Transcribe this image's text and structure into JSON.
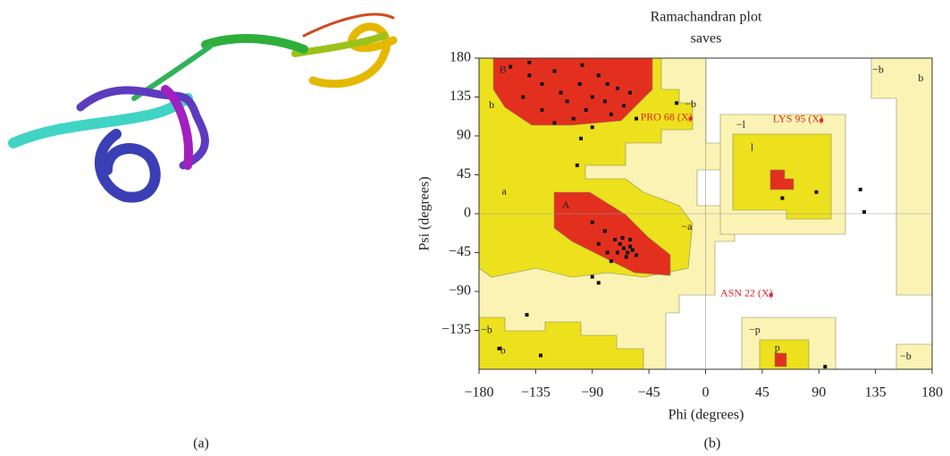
{
  "panel_labels": [
    "(a)",
    "(b)"
  ],
  "chart_data": {
    "type": "scatter",
    "title": "Ramachandran plot",
    "subtitle": "saves",
    "x_label": "Phi (degrees)",
    "y_label": "Psi (degrees)",
    "xlim": [
      -180,
      180
    ],
    "ylim": [
      -180,
      180
    ],
    "xticks": [
      {
        "value": -180,
        "label": "−180"
      },
      {
        "value": -135,
        "label": "−135"
      },
      {
        "value": -90,
        "label": "−90"
      },
      {
        "value": -45,
        "label": "−45"
      },
      0,
      45,
      90,
      135,
      180
    ],
    "yticks": [
      {
        "value": -135,
        "label": "−135"
      },
      {
        "value": -90,
        "label": "−90"
      },
      {
        "value": -45,
        "label": "−45"
      },
      0,
      45,
      90,
      135,
      180
    ],
    "points": {
      "color": "#111111",
      "x": [
        -155,
        -140,
        -130,
        -120,
        -115,
        -110,
        -100,
        -95,
        -90,
        -85,
        -80,
        -75,
        -70,
        -65,
        -60,
        -130,
        -145,
        -105,
        -90,
        -120,
        -78,
        -55,
        -140,
        -98,
        -102,
        -99,
        -65,
        -62,
        -60,
        -68,
        -70,
        -58,
        -63,
        -72,
        -80,
        -75,
        -85,
        -90,
        -55,
        -66,
        -78,
        -60,
        -90,
        -85,
        -142,
        -131,
        -164,
        -23,
        61,
        88,
        123,
        126,
        95
      ],
      "y": [
        170,
        160,
        150,
        165,
        140,
        130,
        150,
        120,
        135,
        160,
        130,
        115,
        145,
        125,
        140,
        120,
        135,
        110,
        100,
        105,
        150,
        110,
        175,
        172,
        56,
        87,
        -40,
        -45,
        -38,
        -35,
        -45,
        -42,
        -50,
        -30,
        -20,
        -55,
        -35,
        -10,
        -48,
        -28,
        -45,
        -30,
        -73,
        -80,
        -117,
        -164,
        -156,
        128,
        18,
        25,
        28,
        2,
        -177
      ]
    },
    "outliers": {
      "color": "#e0262b",
      "labels": [
        "PRO 68 (X)",
        "LYS 95 (X)",
        "ASN 22 (X)"
      ],
      "x": [
        -12,
        92,
        52
      ],
      "y": [
        110,
        108,
        -94
      ]
    },
    "annotations": [
      {
        "text": "B",
        "x": -161,
        "y": 166
      },
      {
        "text": "b",
        "x": -170,
        "y": 125
      },
      {
        "text": "a",
        "x": -160,
        "y": 25
      },
      {
        "text": "A",
        "x": -111,
        "y": 9
      },
      {
        "text": "−a",
        "x": -15,
        "y": -16
      },
      {
        "text": "−b",
        "x": -12,
        "y": 126
      },
      {
        "text": "−l",
        "x": 28,
        "y": 102
      },
      {
        "text": "l",
        "x": 37,
        "y": 76
      },
      {
        "text": "−b",
        "x": 137,
        "y": 166
      },
      {
        "text": "b",
        "x": 171,
        "y": 156
      },
      {
        "text": "−b",
        "x": -174,
        "y": -135
      },
      {
        "text": "b",
        "x": -161,
        "y": -159
      },
      {
        "text": "−p",
        "x": 39,
        "y": -135
      },
      {
        "text": "p",
        "x": 57,
        "y": -156
      },
      {
        "text": "−b",
        "x": 159,
        "y": -166
      }
    ]
  }
}
